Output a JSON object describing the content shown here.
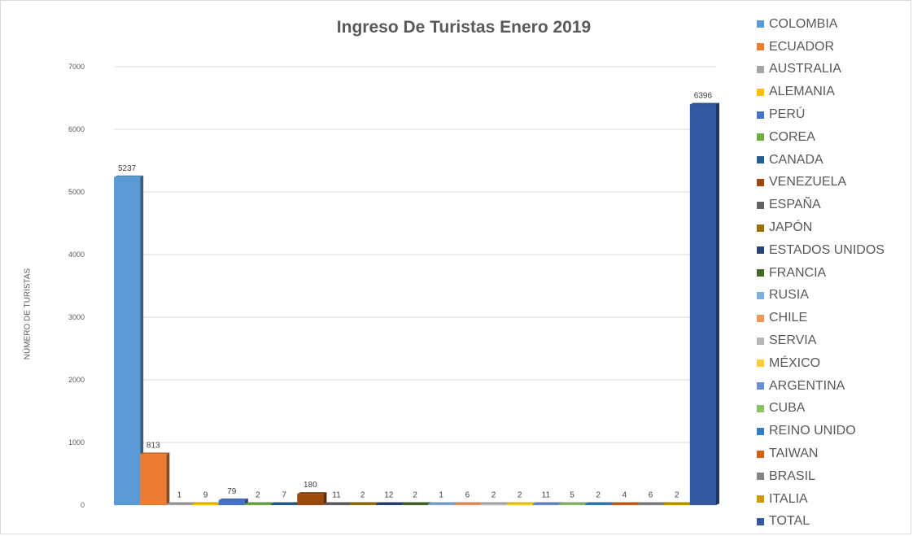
{
  "chart_data": {
    "type": "bar",
    "title": "Ingreso De Turistas Enero 2019",
    "xlabel": "",
    "ylabel": "NÚMERO DE TURISTAS",
    "ylim": [
      0,
      7000
    ],
    "yticks": [
      0,
      1000,
      2000,
      3000,
      4000,
      5000,
      6000,
      7000
    ],
    "grid": true,
    "legend_position": "right",
    "categories": [
      "COLOMBIA",
      "ECUADOR",
      "AUSTRALIA",
      "ALEMANIA",
      "PERÚ",
      "COREA",
      "CANADA",
      "VENEZUELA",
      "ESPAÑA",
      "JAPÓN",
      "ESTADOS UNIDOS",
      "FRANCIA",
      "RUSIA",
      "CHILE",
      "SERVIA",
      "MÉXICO",
      "ARGENTINA",
      "CUBA",
      "REINO UNIDO",
      "TAIWAN",
      "BRASIL",
      "ITALIA",
      "TOTAL"
    ],
    "values": [
      5237,
      813,
      1,
      9,
      79,
      2,
      7,
      180,
      11,
      2,
      12,
      2,
      1,
      6,
      2,
      2,
      11,
      5,
      2,
      4,
      6,
      2,
      6396
    ],
    "colors": [
      "#5b9bd5",
      "#ed7d31",
      "#a5a5a5",
      "#ffc000",
      "#4472c4",
      "#70ad47",
      "#255e91",
      "#9e480e",
      "#636363",
      "#997300",
      "#264478",
      "#43682b",
      "#7cafdd",
      "#f1975a",
      "#b7b7b7",
      "#ffcd33",
      "#698ed0",
      "#8cc168",
      "#327dc2",
      "#d26012",
      "#848484",
      "#cc9a00",
      "#335aa1"
    ]
  }
}
